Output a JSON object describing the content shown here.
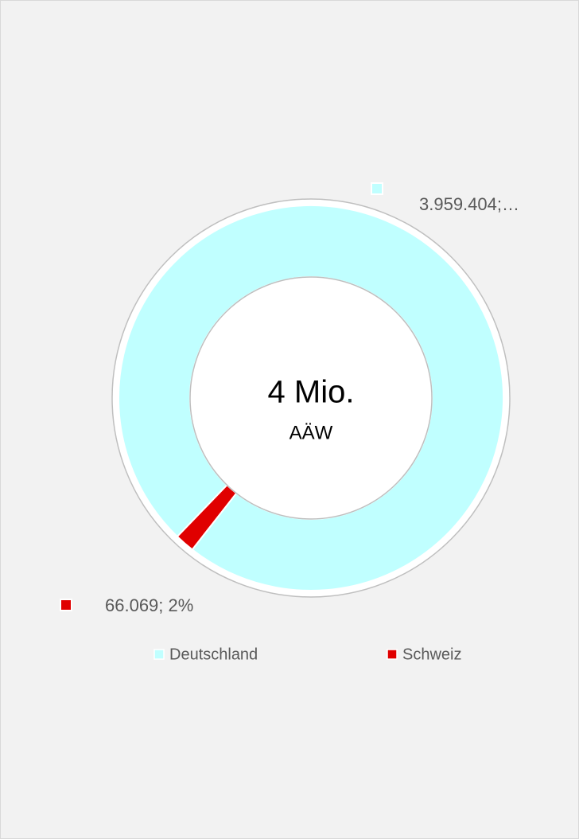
{
  "chart_data": {
    "type": "donut",
    "center_title": "4 Mio.",
    "center_subtitle": "AÄW",
    "categories": [
      "Deutschland",
      "Schweiz"
    ],
    "values": [
      3959404,
      66069
    ],
    "value_labels": [
      "3.959.404;…",
      "66.069; 2%"
    ],
    "colors": [
      "#c0ffff",
      "#e00000"
    ],
    "legend": "bottom"
  }
}
